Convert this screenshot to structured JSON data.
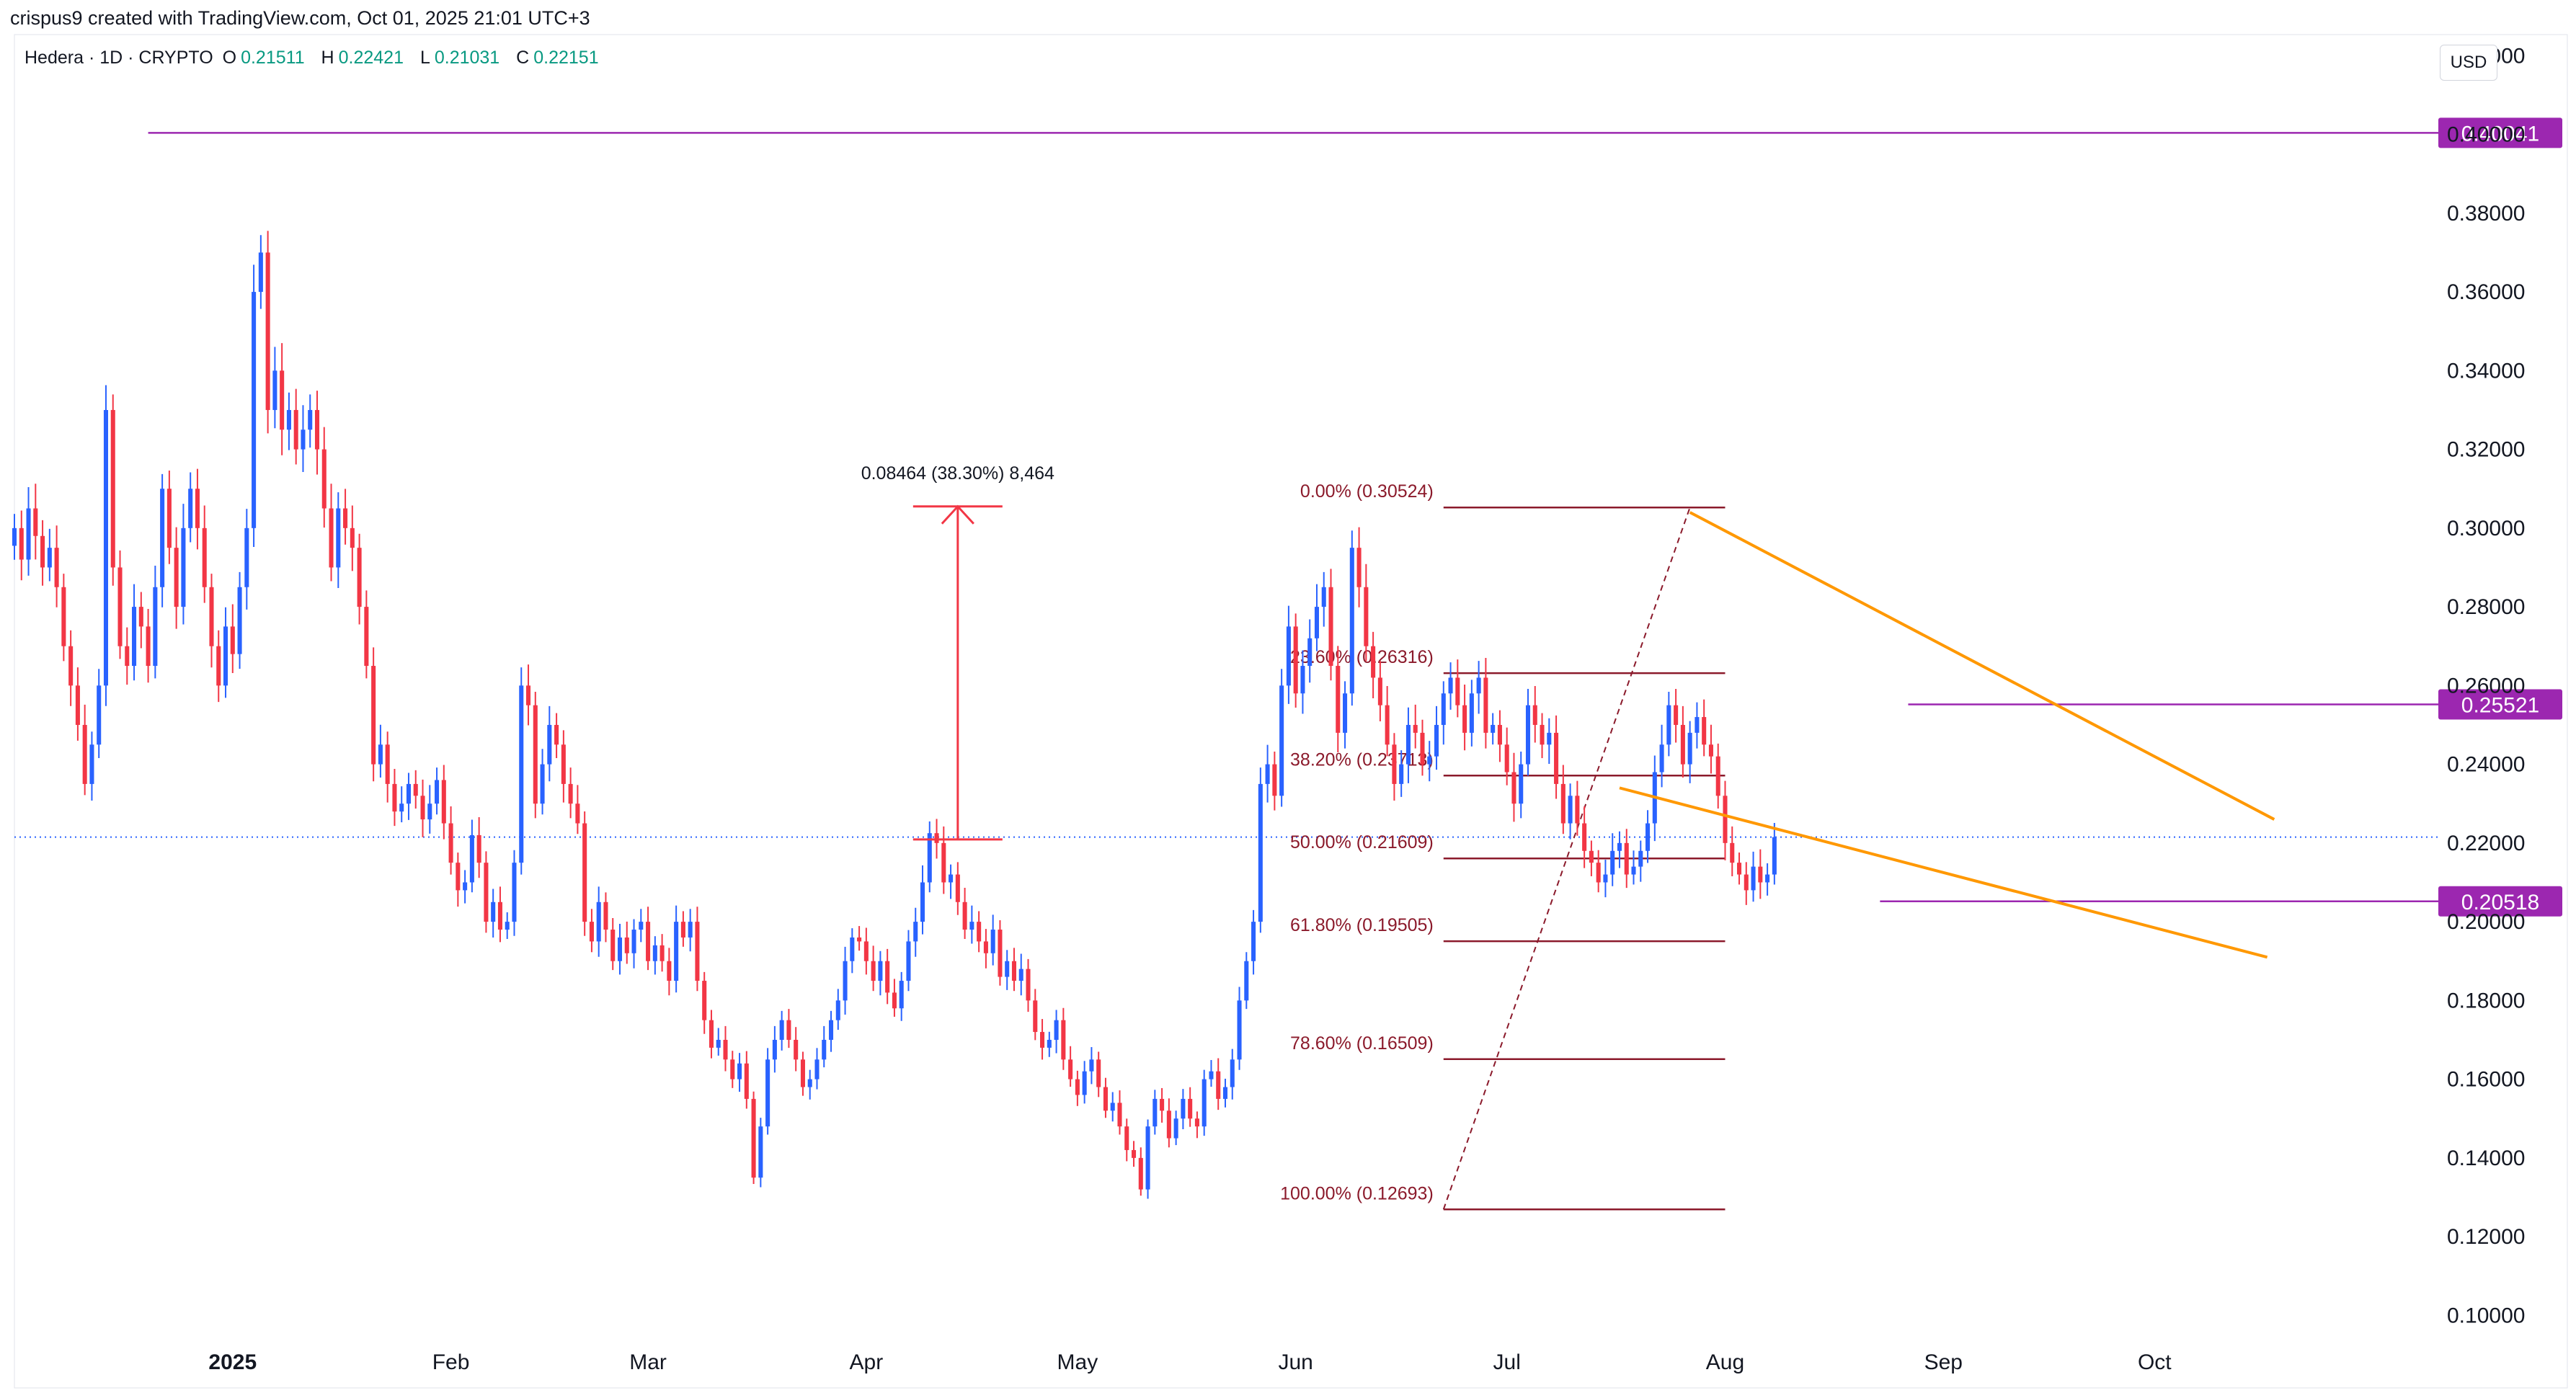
{
  "header": {
    "credit": "crispus9 created with TradingView.com, Oct 01, 2025 21:01 UTC+3",
    "symbol": "Hedera · 1D · CRYPTO",
    "ohlc": [
      {
        "key": "O",
        "value": "0.21511"
      },
      {
        "key": "H",
        "value": "0.22421"
      },
      {
        "key": "L",
        "value": "0.21031"
      },
      {
        "key": "C",
        "value": "0.22151"
      }
    ],
    "currency": "USD"
  },
  "colors": {
    "up": "#2962ff",
    "down": "#f23645",
    "fib": "#8b1a2b",
    "horizontal": "#9c27b0",
    "wedge": "#ff9800",
    "measure": "#f23645",
    "price_line": "#2962ff"
  },
  "chart_data": {
    "type": "candlestick",
    "title": "Hedera · 1D · CRYPTO",
    "ylabel": "USD",
    "ylim": [
      0.09,
      0.425
    ],
    "y_ticks": [
      "0.42000",
      "0.40000",
      "0.38000",
      "0.36000",
      "0.34000",
      "0.32000",
      "0.30000",
      "0.28000",
      "0.26000",
      "0.24000",
      "0.22000",
      "0.20000",
      "0.18000",
      "0.16000",
      "0.14000",
      "0.12000",
      "0.10000"
    ],
    "x_ticks": [
      {
        "label": "2025",
        "date": "2025-01-01",
        "bold": true
      },
      {
        "label": "Feb",
        "date": "2025-02-01"
      },
      {
        "label": "Mar",
        "date": "2025-03-01"
      },
      {
        "label": "Apr",
        "date": "2025-04-01"
      },
      {
        "label": "May",
        "date": "2025-05-01"
      },
      {
        "label": "Jun",
        "date": "2025-06-01"
      },
      {
        "label": "Jul",
        "date": "2025-07-01"
      },
      {
        "label": "Aug",
        "date": "2025-08-01"
      },
      {
        "label": "Sep",
        "date": "2025-09-01"
      },
      {
        "label": "Oct",
        "date": "2025-10-01"
      }
    ],
    "x_range": [
      "2024-12-01",
      "2025-11-10"
    ],
    "series_start": "2024-12-01",
    "closes": [
      0.3,
      0.292,
      0.305,
      0.298,
      0.29,
      0.295,
      0.285,
      0.27,
      0.26,
      0.25,
      0.235,
      0.245,
      0.26,
      0.33,
      0.29,
      0.27,
      0.265,
      0.28,
      0.275,
      0.265,
      0.285,
      0.31,
      0.295,
      0.28,
      0.3,
      0.31,
      0.3,
      0.285,
      0.27,
      0.26,
      0.275,
      0.268,
      0.285,
      0.3,
      0.36,
      0.37,
      0.33,
      0.34,
      0.325,
      0.33,
      0.32,
      0.325,
      0.33,
      0.32,
      0.305,
      0.29,
      0.305,
      0.3,
      0.295,
      0.28,
      0.265,
      0.24,
      0.245,
      0.235,
      0.228,
      0.23,
      0.235,
      0.232,
      0.226,
      0.23,
      0.236,
      0.225,
      0.215,
      0.208,
      0.21,
      0.222,
      0.215,
      0.2,
      0.205,
      0.198,
      0.2,
      0.215,
      0.26,
      0.255,
      0.23,
      0.24,
      0.25,
      0.245,
      0.235,
      0.23,
      0.225,
      0.2,
      0.195,
      0.205,
      0.198,
      0.19,
      0.196,
      0.192,
      0.198,
      0.2,
      0.19,
      0.194,
      0.19,
      0.185,
      0.2,
      0.196,
      0.2,
      0.185,
      0.175,
      0.168,
      0.17,
      0.165,
      0.16,
      0.164,
      0.155,
      0.135,
      0.148,
      0.165,
      0.17,
      0.175,
      0.17,
      0.165,
      0.158,
      0.16,
      0.165,
      0.17,
      0.175,
      0.18,
      0.19,
      0.196,
      0.195,
      0.19,
      0.185,
      0.19,
      0.182,
      0.178,
      0.185,
      0.195,
      0.2,
      0.21,
      0.2225,
      0.22,
      0.21,
      0.212,
      0.205,
      0.198,
      0.2,
      0.195,
      0.192,
      0.198,
      0.186,
      0.19,
      0.185,
      0.188,
      0.18,
      0.172,
      0.168,
      0.17,
      0.175,
      0.165,
      0.16,
      0.156,
      0.162,
      0.165,
      0.158,
      0.152,
      0.154,
      0.148,
      0.142,
      0.14,
      0.132,
      0.148,
      0.155,
      0.152,
      0.145,
      0.15,
      0.155,
      0.15,
      0.148,
      0.16,
      0.162,
      0.155,
      0.158,
      0.165,
      0.18,
      0.19,
      0.2,
      0.235,
      0.24,
      0.232,
      0.26,
      0.275,
      0.258,
      0.265,
      0.272,
      0.28,
      0.285,
      0.265,
      0.248,
      0.258,
      0.295,
      0.285,
      0.27,
      0.262,
      0.255,
      0.245,
      0.235,
      0.24,
      0.25,
      0.248,
      0.24,
      0.242,
      0.25,
      0.258,
      0.262,
      0.255,
      0.248,
      0.258,
      0.262,
      0.248,
      0.25,
      0.245,
      0.238,
      0.23,
      0.24,
      0.255,
      0.25,
      0.245,
      0.248,
      0.235,
      0.225,
      0.232,
      0.225,
      0.218,
      0.215,
      0.21,
      0.212,
      0.218,
      0.22,
      0.212,
      0.214,
      0.218,
      0.225,
      0.238,
      0.245,
      0.255,
      0.25,
      0.24,
      0.248,
      0.252,
      0.245,
      0.242,
      0.232,
      0.22,
      0.215,
      0.212,
      0.208,
      0.214,
      0.21,
      0.212,
      0.2215
    ],
    "horizontal_levels": [
      {
        "label": "0.40041",
        "value": 0.40041,
        "from": "2024-12-20"
      },
      {
        "label": "0.25521",
        "value": 0.25521,
        "from": "2025-08-27"
      },
      {
        "label": "0.20518",
        "value": 0.20518,
        "from": "2025-08-23"
      }
    ],
    "last_price": 0.2215,
    "fibonacci": {
      "from_date": "2025-06-22",
      "to_date": "2025-07-27",
      "levels": [
        {
          "label": "0.00% (0.30524)",
          "value": 0.30524
        },
        {
          "label": "23.60% (0.26316)",
          "value": 0.26316
        },
        {
          "label": "38.20% (0.23713)",
          "value": 0.23713
        },
        {
          "label": "50.00% (0.21609)",
          "value": 0.21609
        },
        {
          "label": "61.80% (0.19505)",
          "value": 0.19505
        },
        {
          "label": "78.60% (0.16509)",
          "value": 0.16509
        },
        {
          "label": "100.00% (0.12693)",
          "value": 0.12693
        }
      ]
    },
    "wedge_lines": [
      {
        "start": {
          "date": "2025-07-27",
          "value": 0.304
        },
        "end": {
          "date": "2025-10-18",
          "value": 0.226
        }
      },
      {
        "start": {
          "date": "2025-07-17",
          "value": 0.234
        },
        "end": {
          "date": "2025-10-17",
          "value": 0.191
        }
      }
    ],
    "measure": {
      "label": "0.08464 (38.30%) 8,464",
      "date": "2025-04-14",
      "from": 0.2209,
      "to": 0.3055
    }
  }
}
